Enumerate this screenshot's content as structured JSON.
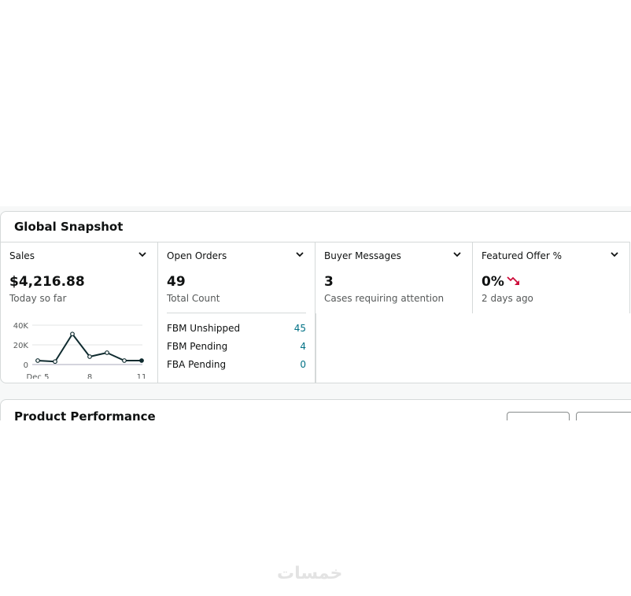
{
  "snapshot": {
    "title": "Global Snapshot",
    "sales": {
      "label": "Sales",
      "value": "$4,216.88",
      "sub": "Today so far"
    },
    "open_orders": {
      "label": "Open Orders",
      "value": "49",
      "sub": "Total Count",
      "rows": [
        {
          "label": "FBM Unshipped",
          "value": "45"
        },
        {
          "label": "FBM Pending",
          "value": "4"
        },
        {
          "label": "FBA Pending",
          "value": "0"
        }
      ]
    },
    "buyer_messages": {
      "label": "Buyer Messages",
      "value": "3",
      "sub": "Cases requiring attention"
    },
    "featured_offer": {
      "label": "Featured Offer %",
      "value": "0%",
      "sub": "2 days ago",
      "trend": "down",
      "trend_color": "#cc0c39"
    }
  },
  "chart_data": {
    "type": "line",
    "x": [
      "Dec 5",
      "Dec 6",
      "Dec 7",
      "Dec 8",
      "Dec 9",
      "Dec 10",
      "Dec 11"
    ],
    "values": [
      4000,
      3000,
      31000,
      8000,
      12000,
      4000,
      4000
    ],
    "x_tick_labels": [
      "Dec 5",
      "8",
      "11"
    ],
    "y_tick_labels": [
      "0",
      "20K",
      "40K"
    ],
    "ylim": [
      0,
      40000
    ],
    "grid": true,
    "color": "#0f2b2f"
  },
  "product_performance": {
    "title": "Product Performance"
  },
  "watermark": "خمسات"
}
